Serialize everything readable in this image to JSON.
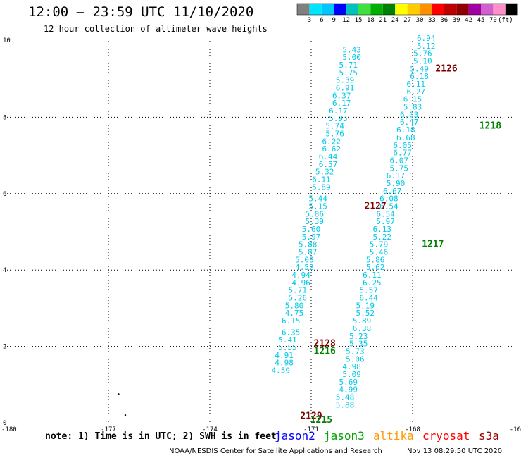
{
  "header": {
    "title": "12:00 – 23:59 UTC 11/10/2020",
    "subtitle": "12 hour collection of altimeter wave heights"
  },
  "legend": {
    "colors": [
      "#808080",
      "#00e5ff",
      "#00c8ff",
      "#0000ff",
      "#00c0c0",
      "#40e040",
      "#00b000",
      "#008000",
      "#ffff00",
      "#ffcc00",
      "#ff9000",
      "#ff0000",
      "#c00000",
      "#900000",
      "#a000a0",
      "#d060d0",
      "#ff90c8",
      "#000000"
    ],
    "labels": [
      "3",
      "6",
      "9",
      "12",
      "15",
      "18",
      "21",
      "24",
      "27",
      "30",
      "33",
      "36",
      "39",
      "42",
      "45",
      "70",
      "(ft)"
    ]
  },
  "axes": {
    "x_ticks": [
      "-180",
      "-177",
      "-174",
      "-171",
      "-168",
      "-16"
    ],
    "y_ticks": [
      "0",
      "2",
      "4",
      "6",
      "8",
      "10"
    ]
  },
  "chart_data": {
    "type": "scatter",
    "xlim": [
      -180,
      -165
    ],
    "ylim": [
      0,
      10
    ],
    "grid": "dotted",
    "value_color": "#00c8e8",
    "left_track": [
      {
        "x": -169.8,
        "y": 9.7,
        "v": "5.43"
      },
      {
        "x": -169.8,
        "y": 9.5,
        "v": "5.00"
      },
      {
        "x": -169.9,
        "y": 9.3,
        "v": "5.71"
      },
      {
        "x": -169.9,
        "y": 9.1,
        "v": "5.75"
      },
      {
        "x": -170.0,
        "y": 8.9,
        "v": "5.39"
      },
      {
        "x": -170.0,
        "y": 8.7,
        "v": "6.91"
      },
      {
        "x": -170.1,
        "y": 8.5,
        "v": "6.37"
      },
      {
        "x": -170.1,
        "y": 8.3,
        "v": "6.17"
      },
      {
        "x": -170.2,
        "y": 8.1,
        "v": "6.17"
      },
      {
        "x": -170.2,
        "y": 7.9,
        "v": "5.95"
      },
      {
        "x": -170.3,
        "y": 7.7,
        "v": "5.74"
      },
      {
        "x": -170.3,
        "y": 7.5,
        "v": "5.76"
      },
      {
        "x": -170.4,
        "y": 7.3,
        "v": "6.22"
      },
      {
        "x": -170.4,
        "y": 7.1,
        "v": "6.62"
      },
      {
        "x": -170.5,
        "y": 6.9,
        "v": "6.44"
      },
      {
        "x": -170.5,
        "y": 6.7,
        "v": "6.57"
      },
      {
        "x": -170.6,
        "y": 6.5,
        "v": "5.32"
      },
      {
        "x": -170.7,
        "y": 6.3,
        "v": "6.11"
      },
      {
        "x": -170.7,
        "y": 6.1,
        "v": "5.89"
      },
      {
        "x": -170.8,
        "y": 5.8,
        "v": "5.44"
      },
      {
        "x": -170.8,
        "y": 5.6,
        "v": "5.15"
      },
      {
        "x": -170.9,
        "y": 5.4,
        "v": "5.86"
      },
      {
        "x": -170.9,
        "y": 5.2,
        "v": "5.39"
      },
      {
        "x": -171.0,
        "y": 5.0,
        "v": "5.60"
      },
      {
        "x": -171.0,
        "y": 4.8,
        "v": "5.97"
      },
      {
        "x": -171.1,
        "y": 4.6,
        "v": "5.88"
      },
      {
        "x": -171.1,
        "y": 4.4,
        "v": "5.87"
      },
      {
        "x": -171.2,
        "y": 4.2,
        "v": "5.08"
      },
      {
        "x": -171.2,
        "y": 4.0,
        "v": "4.52"
      },
      {
        "x": -171.3,
        "y": 3.8,
        "v": "4.94"
      },
      {
        "x": -171.3,
        "y": 3.6,
        "v": "4.96"
      },
      {
        "x": -171.4,
        "y": 3.4,
        "v": "5.71"
      },
      {
        "x": -171.4,
        "y": 3.2,
        "v": "5.26"
      },
      {
        "x": -171.5,
        "y": 3.0,
        "v": "5.80"
      },
      {
        "x": -171.5,
        "y": 2.8,
        "v": "4.75"
      },
      {
        "x": -171.6,
        "y": 2.6,
        "v": "6.15"
      },
      {
        "x": -171.6,
        "y": 2.3,
        "v": "6.35"
      },
      {
        "x": -171.7,
        "y": 2.1,
        "v": "5.41"
      },
      {
        "x": -171.7,
        "y": 1.9,
        "v": "5.55"
      },
      {
        "x": -171.8,
        "y": 1.7,
        "v": "4.91"
      },
      {
        "x": -171.8,
        "y": 1.5,
        "v": "4.98"
      },
      {
        "x": -171.9,
        "y": 1.3,
        "v": "4.59"
      }
    ],
    "right_track": [
      {
        "x": -167.6,
        "y": 10.0,
        "v": "6.94"
      },
      {
        "x": -167.6,
        "y": 9.8,
        "v": "5.12"
      },
      {
        "x": -167.7,
        "y": 9.6,
        "v": "5.76"
      },
      {
        "x": -167.7,
        "y": 9.4,
        "v": "5.10"
      },
      {
        "x": -167.8,
        "y": 9.2,
        "v": "5.49"
      },
      {
        "x": -167.8,
        "y": 9.0,
        "v": "6.18"
      },
      {
        "x": -167.9,
        "y": 8.8,
        "v": "6.11"
      },
      {
        "x": -167.9,
        "y": 8.6,
        "v": "6.27"
      },
      {
        "x": -168.0,
        "y": 8.4,
        "v": "6.15"
      },
      {
        "x": -168.0,
        "y": 8.2,
        "v": "5.83"
      },
      {
        "x": -168.1,
        "y": 8.0,
        "v": "6.03"
      },
      {
        "x": -168.1,
        "y": 7.8,
        "v": "6.47"
      },
      {
        "x": -168.2,
        "y": 7.6,
        "v": "6.18"
      },
      {
        "x": -168.2,
        "y": 7.4,
        "v": "6.68"
      },
      {
        "x": -168.3,
        "y": 7.2,
        "v": "6.05"
      },
      {
        "x": -168.3,
        "y": 7.0,
        "v": "6.77"
      },
      {
        "x": -168.4,
        "y": 6.8,
        "v": "6.07"
      },
      {
        "x": -168.4,
        "y": 6.6,
        "v": "5.75"
      },
      {
        "x": -168.5,
        "y": 6.4,
        "v": "6.17"
      },
      {
        "x": -168.5,
        "y": 6.2,
        "v": "5.90"
      },
      {
        "x": -168.6,
        "y": 6.0,
        "v": "6.67"
      },
      {
        "x": -168.7,
        "y": 5.8,
        "v": "6.08"
      },
      {
        "x": -168.7,
        "y": 5.6,
        "v": "6.54"
      },
      {
        "x": -168.8,
        "y": 5.4,
        "v": "6.54"
      },
      {
        "x": -168.8,
        "y": 5.2,
        "v": "5.97"
      },
      {
        "x": -168.9,
        "y": 5.0,
        "v": "6.13"
      },
      {
        "x": -168.9,
        "y": 4.8,
        "v": "5.22"
      },
      {
        "x": -169.0,
        "y": 4.6,
        "v": "5.79"
      },
      {
        "x": -169.0,
        "y": 4.4,
        "v": "5.46"
      },
      {
        "x": -169.1,
        "y": 4.2,
        "v": "5.86"
      },
      {
        "x": -169.1,
        "y": 4.0,
        "v": "5.62"
      },
      {
        "x": -169.2,
        "y": 3.8,
        "v": "6.11"
      },
      {
        "x": -169.2,
        "y": 3.6,
        "v": "6.25"
      },
      {
        "x": -169.3,
        "y": 3.4,
        "v": "5.57"
      },
      {
        "x": -169.3,
        "y": 3.2,
        "v": "6.44"
      },
      {
        "x": -169.4,
        "y": 3.0,
        "v": "5.19"
      },
      {
        "x": -169.4,
        "y": 2.8,
        "v": "5.52"
      },
      {
        "x": -169.5,
        "y": 2.6,
        "v": "5.89"
      },
      {
        "x": -169.5,
        "y": 2.4,
        "v": "6.38"
      },
      {
        "x": -169.6,
        "y": 2.2,
        "v": "5.23"
      },
      {
        "x": -169.6,
        "y": 2.0,
        "v": "5.35"
      },
      {
        "x": -169.7,
        "y": 1.8,
        "v": "5.73"
      },
      {
        "x": -169.7,
        "y": 1.6,
        "v": "5.06"
      },
      {
        "x": -169.8,
        "y": 1.4,
        "v": "4.98"
      },
      {
        "x": -169.8,
        "y": 1.2,
        "v": "5.09"
      },
      {
        "x": -169.9,
        "y": 1.0,
        "v": "5.69"
      },
      {
        "x": -169.9,
        "y": 0.8,
        "v": "4.99"
      },
      {
        "x": -170.0,
        "y": 0.6,
        "v": "5.48"
      },
      {
        "x": -170.0,
        "y": 0.4,
        "v": "5.88"
      }
    ],
    "time_labels": [
      {
        "x": -167.0,
        "y": 9.2,
        "label": "2126",
        "color": "#800000"
      },
      {
        "x": -165.7,
        "y": 7.7,
        "label": "1218",
        "color": "#008000"
      },
      {
        "x": -169.1,
        "y": 5.6,
        "label": "2127",
        "color": "#800000"
      },
      {
        "x": -167.4,
        "y": 4.6,
        "label": "1217",
        "color": "#008000"
      },
      {
        "x": -170.6,
        "y": 2.0,
        "label": "2128",
        "color": "#800000"
      },
      {
        "x": -170.6,
        "y": 1.8,
        "label": "1216",
        "color": "#008000"
      },
      {
        "x": -171.0,
        "y": 0.1,
        "label": "2129",
        "color": "#800000"
      },
      {
        "x": -170.7,
        "y": 0.0,
        "label": "1215",
        "color": "#008000"
      }
    ],
    "dots": [
      {
        "x": -176.7,
        "y": 0.75
      },
      {
        "x": -176.5,
        "y": 0.2
      }
    ]
  },
  "note": "note: 1) Time is in UTC; 2) SWH is in feet",
  "satellites": [
    {
      "name": "jason2",
      "color": "#0000ff"
    },
    {
      "name": "jason3",
      "color": "#00a000"
    },
    {
      "name": "altika",
      "color": "#ff9900"
    },
    {
      "name": "cryosat",
      "color": "#ff0000"
    },
    {
      "name": "s3a",
      "color": "#a00000"
    }
  ],
  "footer": "NOAA/NESDIS Center for Satellite Applications and Research",
  "credit": "Nov 13 08:29:50 UTC 2020"
}
